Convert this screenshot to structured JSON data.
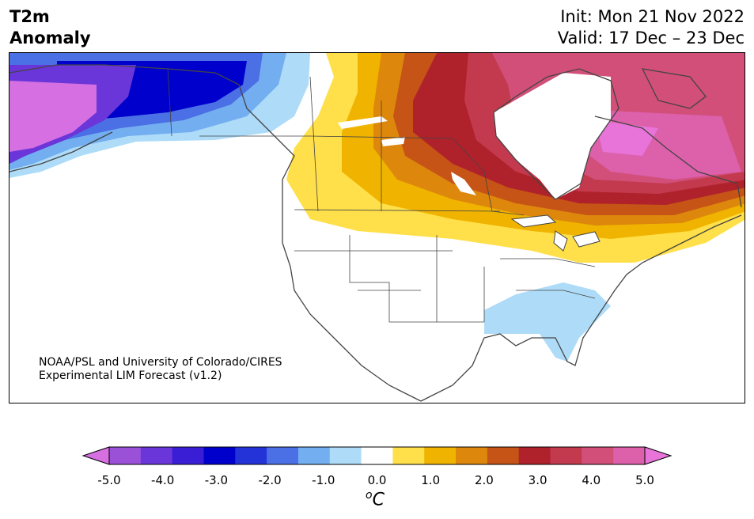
{
  "header": {
    "title_line1": "T2m",
    "title_line2": "Anomaly",
    "init": "Init: Mon 21 Nov 2022",
    "valid": "Valid: 17 Dec – 23 Dec"
  },
  "credit": {
    "line1": "NOAA/PSL and University of Colorado/CIRES",
    "line2": "Experimental LIM Forecast (v1.2)"
  },
  "colorbar": {
    "unit_base": "C",
    "unit_sup": "o",
    "ticks": [
      "-5.0",
      "-4.0",
      "-3.0",
      "-2.0",
      "-1.0",
      "0.0",
      "1.0",
      "2.0",
      "3.0",
      "4.0",
      "5.0"
    ],
    "colors": [
      "#d66fe2",
      "#9a51d8",
      "#6a36d9",
      "#3a1ed6",
      "#0000cc",
      "#2433d8",
      "#4b6fe4",
      "#73aef0",
      "#aedcf8",
      "#ffffff",
      "#ffe04a",
      "#f0b400",
      "#dd870d",
      "#c55416",
      "#b0222b",
      "#c33a4f",
      "#d14f79",
      "#dc60aa",
      "#e874da"
    ]
  },
  "map": {
    "region": "North America",
    "features": [
      "cold anomaly over Alaska and northwest Canada",
      "warm anomaly over central and eastern Canada",
      "cool anomaly over southeastern United States"
    ]
  }
}
